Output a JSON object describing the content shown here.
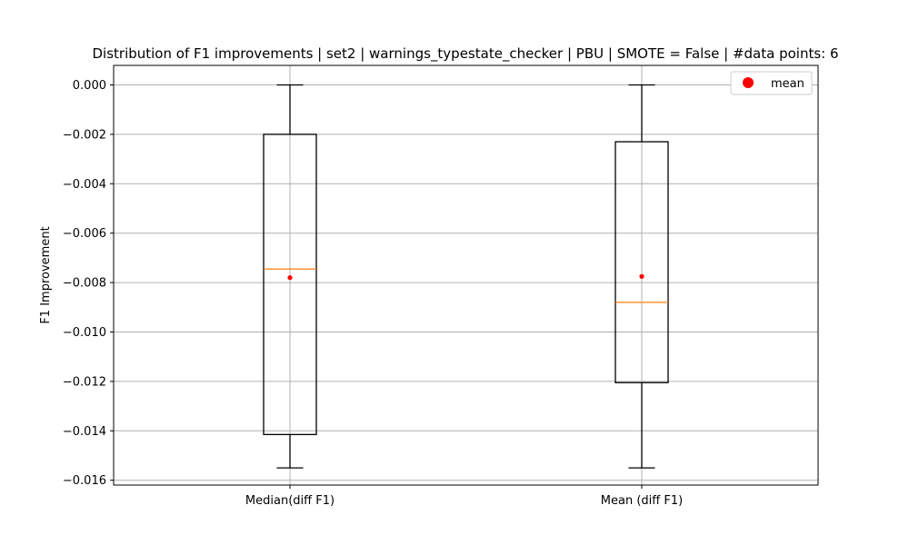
{
  "chart_data": {
    "type": "box",
    "title": "Distribution of F1 improvements | set2 | warnings_typestate_checker | PBU | SMOTE = False | #data points: 6",
    "xlabel": "",
    "ylabel": "F1 Improvement",
    "ylim": [
      -0.01625,
      0.00075
    ],
    "yticks": [
      0.0,
      -0.002,
      -0.004,
      -0.006,
      -0.008,
      -0.01,
      -0.012,
      -0.014,
      -0.016
    ],
    "ytick_labels": [
      "0.000",
      "−0.002",
      "−0.004",
      "−0.006",
      "−0.008",
      "−0.010",
      "−0.012",
      "−0.014",
      "−0.016"
    ],
    "grid": true,
    "legend": {
      "position": "top-right",
      "entries": [
        {
          "label": "mean",
          "color": "#ff0000"
        }
      ]
    },
    "colors": {
      "box": "#000000",
      "median": "#ff7f0e",
      "mean": "#ff0000",
      "grid": "#b0b0b0"
    },
    "boxes": [
      {
        "label": "Median(diff F1)",
        "whisker_low": -0.0155,
        "q1": -0.01415,
        "median": -0.00745,
        "q3": -0.002,
        "whisker_high": 0.0,
        "mean": -0.0078
      },
      {
        "label": "Mean (diff F1)",
        "whisker_low": -0.0155,
        "q1": -0.01205,
        "median": -0.0088,
        "q3": -0.0023,
        "whisker_high": 0.0,
        "mean": -0.00775
      }
    ]
  }
}
